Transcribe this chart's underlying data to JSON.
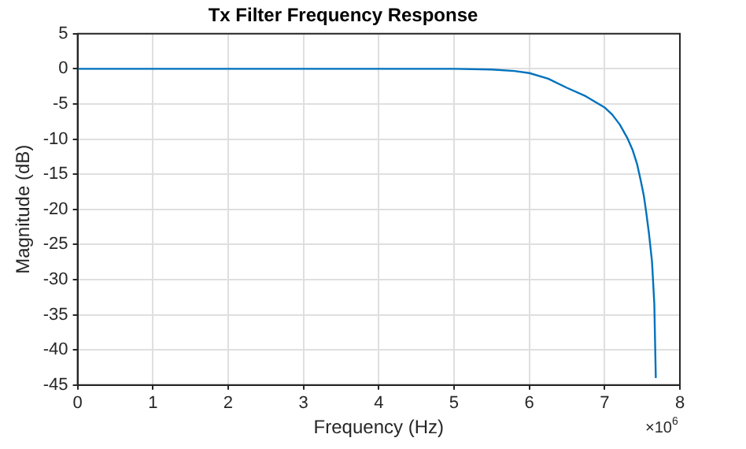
{
  "chart_data": {
    "type": "line",
    "title": "Tx Filter Frequency Response",
    "xlabel": "Frequency (Hz)",
    "ylabel": "Magnitude (dB)",
    "annotations": [
      "×10$^{6}$"
    ],
    "series": [
      {
        "color": "#0072bd",
        "x": [
          0,
          1,
          2,
          3,
          4,
          5,
          5.5,
          5.8,
          6,
          6.25,
          6.5,
          6.75,
          7,
          7.1,
          7.2,
          7.3,
          7.37,
          7.43,
          7.48,
          7.52,
          7.55,
          7.59,
          7.63,
          7.66,
          7.68
        ],
        "values": [
          0,
          0,
          0,
          0,
          0,
          0,
          -0.1,
          -0.3,
          -0.6,
          -1.4,
          -2.7,
          -3.9,
          -5.5,
          -6.5,
          -7.9,
          -9.8,
          -11.5,
          -13.5,
          -15.9,
          -18,
          -20.2,
          -23.5,
          -27.5,
          -33.4,
          -44
        ]
      }
    ],
    "xlim": [
      0,
      8
    ],
    "xticks": [
      0,
      1,
      2,
      3,
      4,
      5,
      6,
      7,
      8
    ],
    "ylim": [
      -45,
      5
    ],
    "yticks": [
      5,
      0,
      -5,
      -10,
      -15,
      -20,
      -25,
      -30,
      -35,
      -40,
      -45
    ],
    "grid": true,
    "legend": false,
    "marker": "none",
    "line_style": "solid"
  }
}
